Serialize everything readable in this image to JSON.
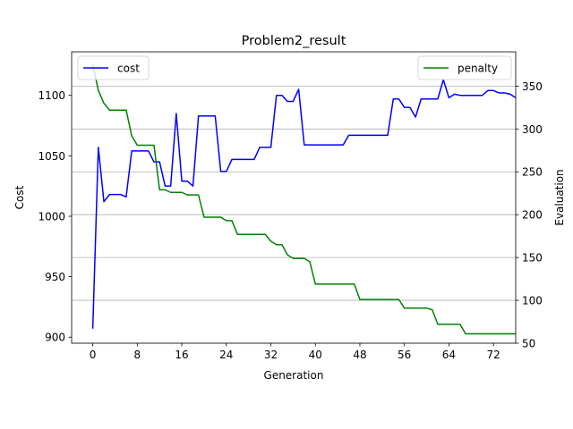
{
  "chart_data": {
    "type": "line",
    "title": "Problem2_result",
    "xlabel": "Generation",
    "ylabel_left": "Cost",
    "ylabel_right": "Evaluation",
    "xlim": [
      -3.8,
      76
    ],
    "ylim_left": [
      895,
      1136
    ],
    "ylim_right": [
      50,
      390
    ],
    "x_ticks": [
      0,
      8,
      16,
      24,
      32,
      40,
      48,
      56,
      64,
      72
    ],
    "y_left_ticks": [
      900,
      950,
      1000,
      1050,
      1100
    ],
    "y_right_ticks": [
      50,
      100,
      150,
      200,
      250,
      300,
      350
    ],
    "grid": "horizontal lines at right-axis ticks",
    "legend_left": "top-left",
    "legend_right": "top-right",
    "x": [
      0,
      1,
      2,
      3,
      4,
      5,
      6,
      7,
      8,
      9,
      10,
      11,
      12,
      13,
      14,
      15,
      16,
      17,
      18,
      19,
      20,
      21,
      22,
      23,
      24,
      25,
      26,
      27,
      28,
      29,
      30,
      31,
      32,
      33,
      34,
      35,
      36,
      37,
      38,
      39,
      40,
      41,
      42,
      43,
      44,
      45,
      46,
      47,
      48,
      49,
      50,
      51,
      52,
      53,
      54,
      55,
      56,
      57,
      58,
      59,
      60,
      61,
      62,
      63,
      64,
      65,
      66,
      67,
      68,
      69,
      70,
      71,
      72,
      73,
      74,
      75,
      76
    ],
    "series": [
      {
        "name": "cost",
        "color": "#0000ff",
        "axis": "left",
        "values": [
          907,
          1057,
          1012,
          1018,
          1018,
          1018,
          1016,
          1054,
          1054,
          1054,
          1054,
          1045,
          1045,
          1025,
          1025,
          1085,
          1029,
          1029,
          1025,
          1083,
          1083,
          1083,
          1083,
          1037,
          1037,
          1047,
          1047,
          1047,
          1047,
          1047,
          1057,
          1057,
          1057,
          1100,
          1100,
          1095,
          1095,
          1105,
          1059,
          1059,
          1059,
          1059,
          1059,
          1059,
          1059,
          1059,
          1067,
          1067,
          1067,
          1067,
          1067,
          1067,
          1067,
          1067,
          1097,
          1097,
          1090,
          1090,
          1082,
          1097,
          1097,
          1097,
          1097,
          1113,
          1098,
          1101,
          1100,
          1100,
          1100,
          1100,
          1100,
          1104,
          1104,
          1102,
          1102,
          1101,
          1098
        ]
      },
      {
        "name": "penalty",
        "color": "#008000",
        "axis": "right",
        "values": [
          375,
          345,
          330,
          322,
          322,
          322,
          322,
          292,
          281,
          281,
          281,
          281,
          229,
          229,
          226,
          226,
          226,
          223,
          223,
          223,
          197,
          197,
          197,
          197,
          193,
          193,
          177,
          177,
          177,
          177,
          177,
          177,
          169,
          165,
          165,
          153,
          149,
          149,
          149,
          145,
          119,
          119,
          119,
          119,
          119,
          119,
          119,
          119,
          101,
          101,
          101,
          101,
          101,
          101,
          101,
          101,
          91,
          91,
          91,
          91,
          91,
          89,
          72,
          72,
          72,
          72,
          72,
          61,
          61,
          61,
          61,
          61,
          61,
          61,
          61,
          61,
          61
        ]
      }
    ]
  }
}
